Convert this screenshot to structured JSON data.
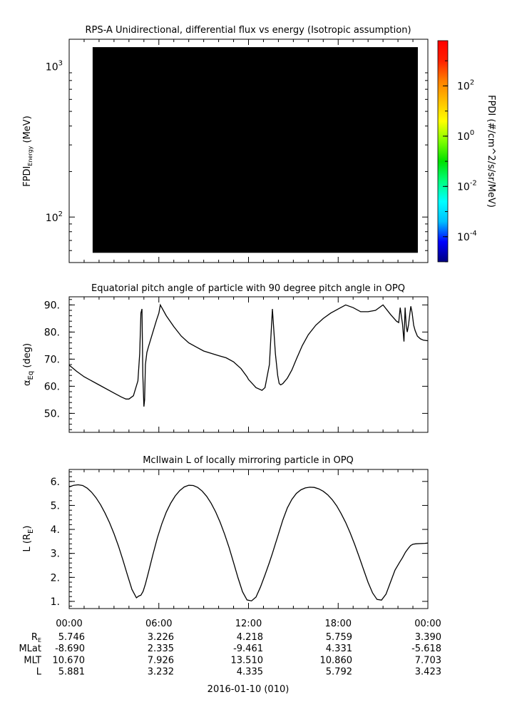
{
  "chart_data": [
    {
      "type": "heatmap",
      "title": "RPS-A Unidirectional, differential flux vs energy (Isotropic assumption)",
      "ylabel_main": "FPDI",
      "ylabel_sub": "Energy",
      "ylabel_unit": " (MeV)",
      "yscale": "log",
      "ylim": [
        50,
        1500
      ],
      "yticks": [
        {
          "value": 100,
          "base": "10",
          "exp": "2"
        },
        {
          "value": 1000,
          "base": "10",
          "exp": "3"
        }
      ],
      "xlim": [
        0,
        24
      ],
      "data_extent": {
        "x": [
          1.57,
          23.33
        ],
        "y": [
          58,
          1330
        ]
      },
      "fill_color": "#000000",
      "colorbar": {
        "label": "FPDI (#/cm^2/s/sr/MeV)",
        "scale": "log",
        "range_exp": [
          -5,
          3.8
        ],
        "ticks": [
          {
            "exp": -4,
            "label_base": "10",
            "label_exp": "-4"
          },
          {
            "exp": -2,
            "label_base": "10",
            "label_exp": "-2"
          },
          {
            "exp": 0,
            "label_base": "10",
            "label_exp": "0"
          },
          {
            "exp": 2,
            "label_base": "10",
            "label_exp": "2"
          }
        ],
        "colors": [
          "#00007f",
          "#0000ff",
          "#00bfff",
          "#00ffff",
          "#00ff7f",
          "#00e000",
          "#7fff00",
          "#ffff00",
          "#ffbf00",
          "#ff7f00",
          "#ff2000",
          "#ff0000"
        ]
      }
    },
    {
      "type": "line",
      "title": "Equatorial pitch angle of particle with 90 degree pitch angle in OPQ",
      "ylabel_main": "α",
      "ylabel_sub": "Eq",
      "ylabel_unit": " (deg)",
      "ylim": [
        43,
        93
      ],
      "yticks": [
        50,
        60,
        70,
        80,
        90
      ],
      "ytick_labels": [
        "50.",
        "60.",
        "70.",
        "80.",
        "90."
      ],
      "xlim": [
        0,
        24
      ],
      "x": [
        0,
        0.5,
        1.0,
        2.0,
        3.0,
        3.5,
        3.8,
        4.0,
        4.3,
        4.6,
        4.72,
        4.8,
        4.87,
        4.93,
        5.0,
        5.05,
        5.1,
        5.2,
        5.3,
        5.6,
        5.85,
        6.0,
        6.1,
        6.5,
        7.0,
        7.5,
        8.0,
        8.5,
        9.0,
        10.0,
        10.5,
        11.0,
        11.5,
        11.9,
        12.0,
        12.5,
        12.9,
        13.1,
        13.4,
        13.6,
        13.8,
        13.95,
        14.05,
        14.15,
        14.3,
        14.6,
        14.9,
        15.2,
        15.6,
        16.0,
        16.5,
        17.0,
        17.5,
        18.0,
        18.5,
        19.0,
        19.5,
        20.0,
        20.5,
        21.0,
        21.5,
        21.9,
        22.05,
        22.15,
        22.3,
        22.4,
        22.48,
        22.55,
        22.62,
        22.7,
        22.78,
        22.86,
        22.95,
        23.05,
        23.15,
        23.3,
        23.5,
        23.7,
        24.0
      ],
      "y": [
        67.8,
        65.5,
        63.5,
        60.5,
        57.5,
        56.0,
        55.3,
        55.3,
        56.5,
        62.0,
        72.0,
        87.0,
        88.5,
        64.0,
        52.5,
        55.0,
        68.0,
        72.5,
        74.5,
        80.0,
        84.5,
        87.0,
        90.0,
        86.0,
        82.0,
        78.5,
        76.0,
        74.5,
        73.0,
        71.3,
        70.5,
        69.0,
        66.5,
        63.5,
        62.5,
        59.5,
        58.5,
        59.5,
        68.0,
        88.5,
        72.0,
        64.0,
        61.0,
        60.5,
        61.0,
        63.0,
        66.0,
        70.0,
        75.0,
        79.0,
        82.5,
        85.0,
        87.0,
        88.5,
        90.0,
        89.0,
        87.5,
        87.5,
        88.0,
        90.0,
        86.5,
        84.0,
        83.5,
        89.0,
        83.0,
        76.5,
        89.0,
        82.5,
        80.0,
        82.5,
        86.0,
        89.5,
        87.0,
        82.5,
        80.5,
        78.5,
        77.5,
        77.0,
        76.8
      ]
    },
    {
      "type": "line",
      "title": "McIlwain L of locally mirroring particle in OPQ",
      "ylabel_main": "L (R",
      "ylabel_sub": "E",
      "ylabel_unit": ")",
      "ylim": [
        0.7,
        6.5
      ],
      "yticks": [
        1,
        2,
        3,
        4,
        5,
        6
      ],
      "ytick_labels": [
        "1.",
        "2.",
        "3.",
        "4.",
        "5.",
        "6."
      ],
      "xlim": [
        0,
        24
      ],
      "x": [
        0,
        0.3,
        0.6,
        0.9,
        1.2,
        1.5,
        1.8,
        2.1,
        2.4,
        2.7,
        3.0,
        3.3,
        3.6,
        3.9,
        4.2,
        4.5,
        4.65,
        4.8,
        4.95,
        5.1,
        5.3,
        5.6,
        5.9,
        6.2,
        6.5,
        6.8,
        7.1,
        7.4,
        7.7,
        8.0,
        8.3,
        8.6,
        8.9,
        9.2,
        9.5,
        9.8,
        10.1,
        10.4,
        10.7,
        11.0,
        11.3,
        11.6,
        11.9,
        12.2,
        12.5,
        12.8,
        13.1,
        13.4,
        13.6,
        13.8,
        13.95,
        14.1,
        14.3,
        14.6,
        14.9,
        15.2,
        15.5,
        15.8,
        16.1,
        16.4,
        16.7,
        17.0,
        17.3,
        17.6,
        17.9,
        18.2,
        18.5,
        18.8,
        19.1,
        19.4,
        19.7,
        20.0,
        20.3,
        20.6,
        20.9,
        21.2,
        21.5,
        21.8,
        22.1,
        22.3,
        22.5,
        22.7,
        22.85,
        23.0,
        23.2,
        23.5,
        23.8,
        24.0
      ],
      "y": [
        5.77,
        5.84,
        5.86,
        5.83,
        5.72,
        5.55,
        5.32,
        5.03,
        4.68,
        4.28,
        3.82,
        3.3,
        2.72,
        2.1,
        1.5,
        1.15,
        1.22,
        1.26,
        1.42,
        1.72,
        2.2,
        2.95,
        3.65,
        4.23,
        4.72,
        5.1,
        5.4,
        5.62,
        5.77,
        5.84,
        5.83,
        5.75,
        5.6,
        5.38,
        5.09,
        4.73,
        4.3,
        3.8,
        3.24,
        2.62,
        1.98,
        1.4,
        1.06,
        1.02,
        1.18,
        1.6,
        2.1,
        2.62,
        3.0,
        3.4,
        3.7,
        4.0,
        4.4,
        4.9,
        5.25,
        5.5,
        5.65,
        5.73,
        5.76,
        5.75,
        5.69,
        5.59,
        5.44,
        5.24,
        4.98,
        4.66,
        4.29,
        3.86,
        3.38,
        2.86,
        2.32,
        1.79,
        1.35,
        1.08,
        1.05,
        1.3,
        1.8,
        2.3,
        2.62,
        2.82,
        3.05,
        3.22,
        3.33,
        3.38,
        3.4,
        3.41,
        3.42,
        3.43
      ]
    }
  ],
  "time_axis": {
    "tick_labels": [
      "00:00",
      "06:00",
      "12:00",
      "18:00",
      "00:00"
    ],
    "date_label": "2016-01-10 (010)"
  },
  "ephemeris": {
    "rows": [
      {
        "label_main": "R",
        "label_sub": "E",
        "values": [
          "5.746",
          "3.226",
          "4.218",
          "5.759",
          "3.390"
        ]
      },
      {
        "label_main": "MLat",
        "label_sub": "",
        "values": [
          "-8.690",
          "2.335",
          "-9.461",
          "4.331",
          "-5.618"
        ]
      },
      {
        "label_main": "MLT",
        "label_sub": "",
        "values": [
          "10.670",
          "7.926",
          "13.510",
          "10.860",
          "7.703"
        ]
      },
      {
        "label_main": "L",
        "label_sub": "",
        "values": [
          "5.881",
          "3.232",
          "4.335",
          "5.792",
          "3.423"
        ]
      }
    ]
  }
}
